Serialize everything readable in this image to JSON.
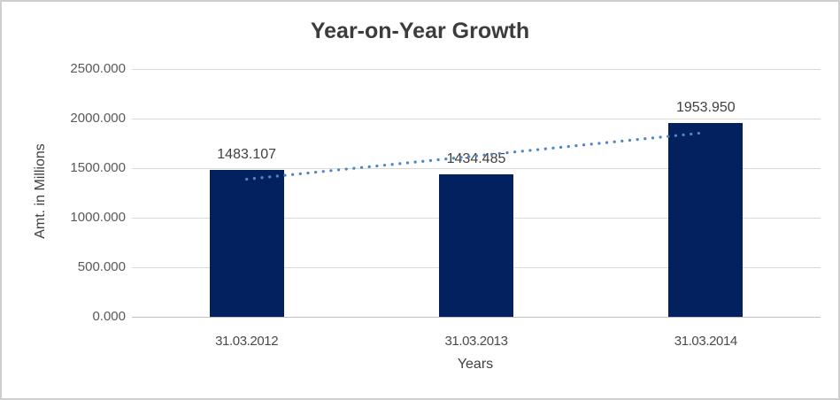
{
  "window": {
    "background_color": "#ffffff",
    "border_color": "#cfcfcf"
  },
  "chart_data": {
    "type": "bar",
    "title": "Year-on-Year Growth",
    "categories": [
      "31.03.2012",
      "31.03.2013",
      "31.03.2014"
    ],
    "values": [
      1483.107,
      1434.485,
      1953.95
    ],
    "data_labels": [
      "1483.107",
      "1434.485",
      "1953.950"
    ],
    "xlabel": "Years",
    "ylabel": "Amt. in Millions",
    "ylim": [
      0,
      2500
    ],
    "yticks": [
      0,
      500,
      1000,
      1500,
      2000,
      2500
    ],
    "ytick_labels": [
      "0.000",
      "500.000",
      "1000.000",
      "1500.000",
      "2000.000",
      "2500.000"
    ],
    "grid": true,
    "legend": "none",
    "bar_color": "#03215f",
    "gridline_color": "#d9d9d9",
    "axis_line_color": "#bfbfbf",
    "tick_label_color": "#595959",
    "data_label_color": "#404040",
    "title_color": "#3c3c3c",
    "trendline": {
      "type": "linear",
      "style": "dotted",
      "color": "#4f86c6",
      "endpoint_values": [
        1388.43,
        1859.27
      ]
    }
  }
}
